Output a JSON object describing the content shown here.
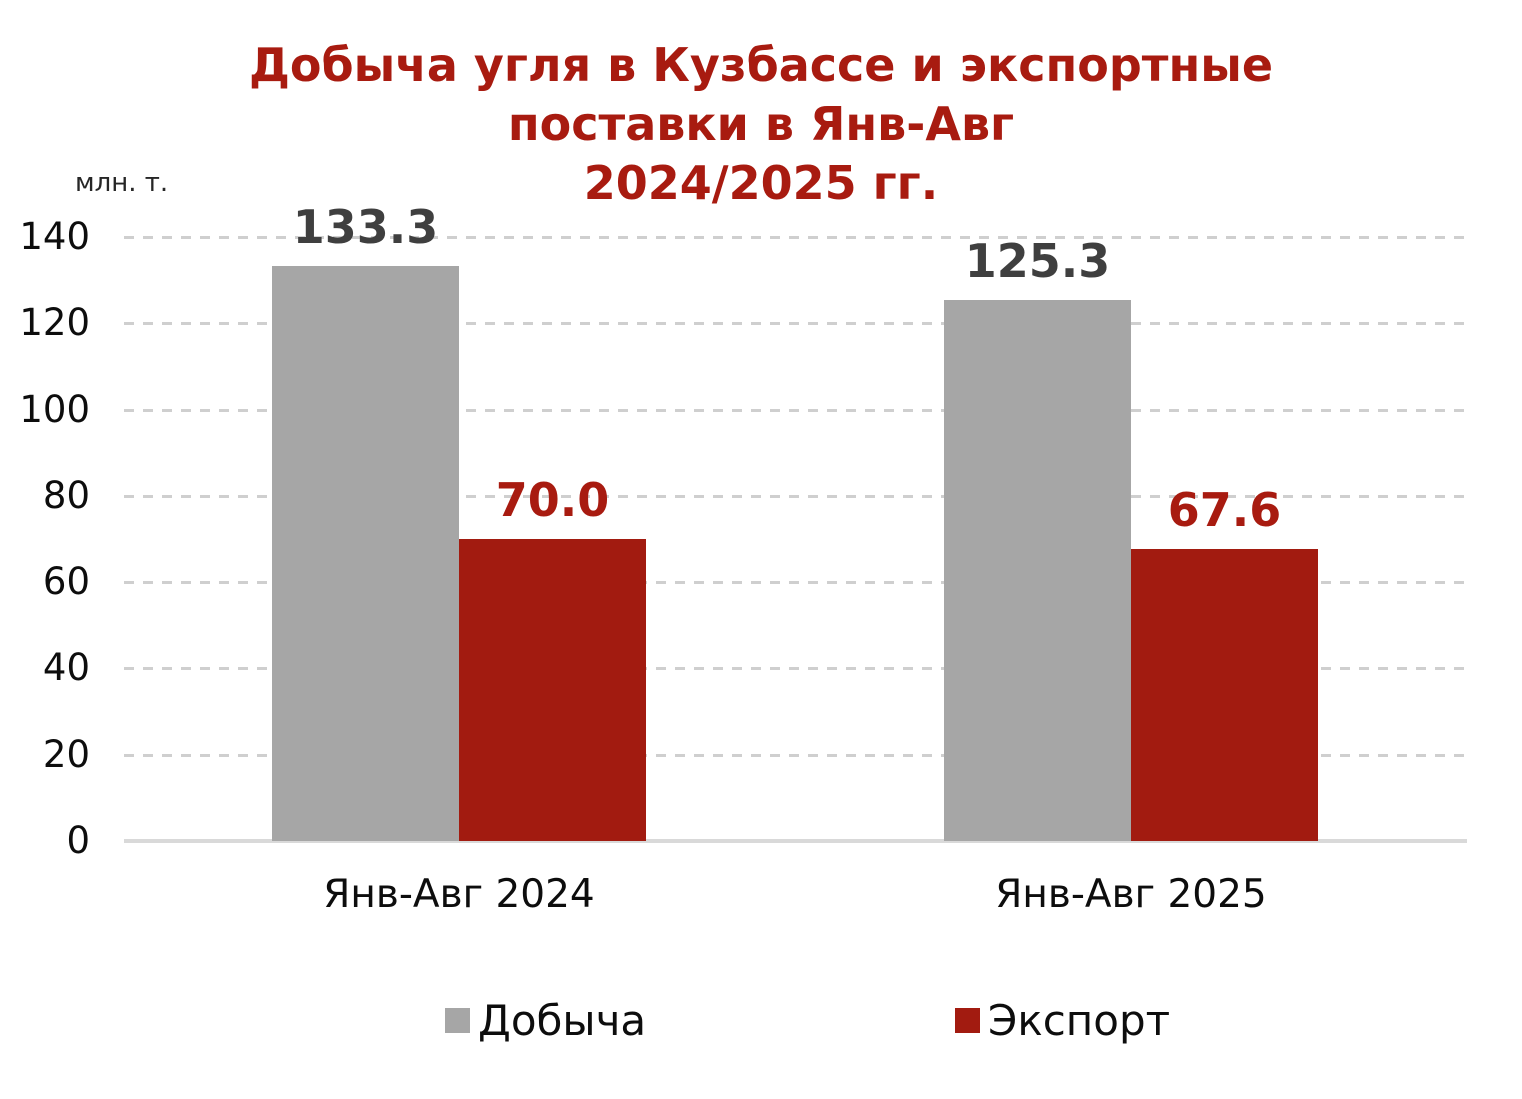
{
  "chart_data": {
    "type": "bar",
    "title": "Добыча угля в Кузбассе и экспортные поставки в Янв-Авг 2024/2025 гг.",
    "title_lines": [
      "Добыча угля в Кузбассе и экспортные",
      "поставки в Янв-Авг",
      "2024/2025 гг."
    ],
    "unit_label": "млн. т.",
    "categories": [
      "Янв-Авг 2024",
      "Янв-Авг 2025"
    ],
    "series": [
      {
        "key": "production",
        "name": "Добыча",
        "values": [
          133.3,
          125.3
        ],
        "labels": [
          "133.3",
          "125.3"
        ],
        "color": "#A6A6A6",
        "label_color": "#3F3F3F"
      },
      {
        "key": "export",
        "name": "Экспорт",
        "values": [
          70.0,
          67.6
        ],
        "labels": [
          "70.0",
          "67.6"
        ],
        "color": "#A21B10",
        "label_color": "#A81B10"
      }
    ],
    "ylim": [
      0,
      140
    ],
    "yticks": [
      0,
      20,
      40,
      60,
      80,
      100,
      120,
      140
    ],
    "grid": "dashed horizontal gridlines, solid baseline at 0",
    "legend_position": "bottom",
    "colors": {
      "title": "#A81B10",
      "background": "#FFFFFF",
      "gridline": "#CFCFCF",
      "axis_line": "#D9D9D9",
      "tick_label": "#0D0D0D",
      "category_label": "#0D0D0D"
    }
  }
}
